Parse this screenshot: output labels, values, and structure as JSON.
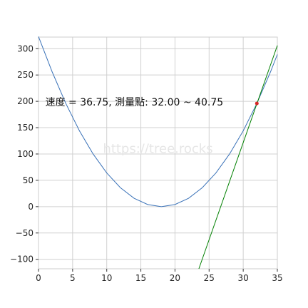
{
  "chart_data": {
    "type": "line",
    "title": "",
    "xlabel": "",
    "ylabel": "",
    "xlim": [
      0,
      35
    ],
    "ylim": [
      -118,
      322
    ],
    "xticks": [
      0,
      5,
      10,
      15,
      20,
      25,
      30,
      35
    ],
    "yticks": [
      -100,
      -50,
      0,
      50,
      100,
      150,
      200,
      250,
      300
    ],
    "grid": true,
    "series": [
      {
        "kind": "curve",
        "color": "#3a72b8",
        "x": [
          0,
          2,
          4,
          6,
          8,
          10,
          12,
          14,
          16,
          18,
          20,
          22,
          24,
          26,
          28,
          30,
          32,
          34,
          35
        ],
        "y": [
          323,
          256,
          196,
          144,
          100,
          64,
          36,
          16,
          4,
          0,
          4,
          16,
          36,
          64,
          100,
          144,
          196,
          256,
          289
        ]
      },
      {
        "kind": "tangent",
        "color": "#008000",
        "x": [
          23.5,
          35
        ],
        "y": [
          -122,
          306
        ]
      }
    ],
    "point": {
      "x": 32,
      "y": 196,
      "color": "#d62728"
    },
    "annotation": {
      "text": "速度 = 36.75, 測量點: 32.00 ~ 40.75",
      "x": 1,
      "y": 199
    },
    "watermark": "https://tree.rocks"
  }
}
